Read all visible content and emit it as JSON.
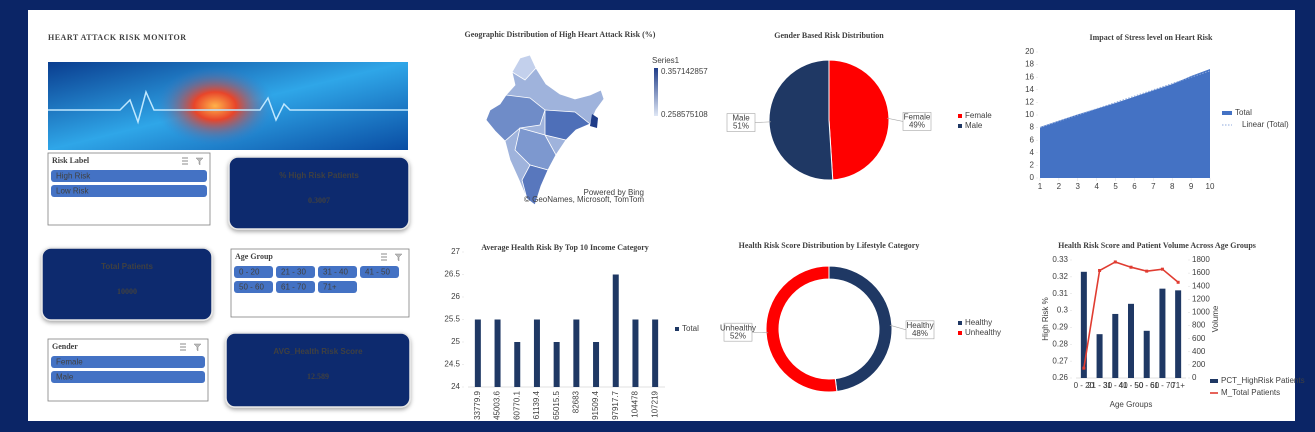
{
  "header": {
    "title": "HEART ATTACK RISK MONITOR"
  },
  "slicers": [
    {
      "title": "Risk Label",
      "items": [
        "High Risk",
        "Low Risk"
      ]
    },
    {
      "title": "Age Group",
      "items": [
        "0 - 20",
        "21 - 30",
        "31 - 40",
        "41 - 50",
        "50 - 60",
        "61 - 70",
        "71+"
      ]
    },
    {
      "title": "Gender",
      "items": [
        "Female",
        "Male"
      ]
    }
  ],
  "kpis": [
    {
      "label": "% High Risk Patients",
      "value": 0.3007
    },
    {
      "label": "Total Patients",
      "value": 10000
    },
    {
      "label": "AVG_Health Risk Score",
      "value": 12.589
    }
  ],
  "chart_data": [
    {
      "type": "map",
      "title": "Geographic Distribution of High Heart Attack Risk (%)",
      "legend_title": "Series1",
      "color_max": 0.357142857,
      "color_min": 0.258575108,
      "colors": [
        "#1f3c88",
        "#dfe7f5"
      ],
      "attribution": [
        "Powered by Bing",
        "© GeoNames, Microsoft, TomTom"
      ]
    },
    {
      "type": "pie",
      "title": "Gender Based Risk Distribution",
      "categories": [
        "Female",
        "Male"
      ],
      "values": [
        49,
        51
      ],
      "value_labels": [
        "49%",
        "51%"
      ],
      "colors": [
        "#ff0000",
        "#1f3864"
      ]
    },
    {
      "type": "area",
      "title": "Impact of Stress level on Heart Risk",
      "x": [
        1,
        2,
        3,
        4,
        5,
        6,
        7,
        8,
        9,
        10
      ],
      "series": [
        {
          "name": "Total",
          "kind": "area",
          "color": "#4472c4",
          "values": [
            8.1,
            9.1,
            10.1,
            11.0,
            11.9,
            12.9,
            13.9,
            14.9,
            16.2,
            17.3
          ]
        },
        {
          "name": "Linear (Total)",
          "kind": "trendline",
          "color": "#8faadc",
          "values": [
            8.0,
            9.0,
            10.0,
            11.0,
            12.0,
            13.0,
            14.0,
            15.0,
            16.0,
            17.0
          ]
        }
      ],
      "xlim": [
        1,
        10
      ],
      "xticks": [
        1,
        2,
        3,
        4,
        5,
        6,
        7,
        8,
        9,
        10
      ],
      "ylim": [
        0,
        20
      ],
      "yticks": [
        0,
        2,
        4,
        6,
        8,
        10,
        12,
        14,
        16,
        18,
        20
      ]
    },
    {
      "type": "bar",
      "title": "Average Health Risk  By Top 10 Income Category",
      "categories": [
        "33779.9",
        "45003.6",
        "60770.1",
        "61139.4",
        "65015.5",
        "82683",
        "91509.4",
        "97917.7",
        "104478",
        "107219"
      ],
      "series": [
        {
          "name": "Total",
          "color": "#1f3864",
          "values": [
            25.5,
            25.5,
            25,
            25.5,
            25,
            25.5,
            25,
            26.5,
            25.5,
            25.5
          ]
        }
      ],
      "ylim": [
        24,
        27
      ],
      "yticks": [
        24,
        24.5,
        25,
        25.5,
        26,
        26.5,
        27
      ]
    },
    {
      "type": "donut",
      "title": "Health Risk Score Distribution by Lifestyle Category",
      "categories": [
        "Healthy",
        "Unhealthy"
      ],
      "values": [
        48,
        52
      ],
      "value_labels": [
        "48%",
        "52%"
      ],
      "colors": [
        "#1f3864",
        "#ff0000"
      ]
    },
    {
      "type": "combo",
      "title": "Health Risk Score and Patient Volume Across Age Groups",
      "categories": [
        "0 - 20",
        "21 - 30",
        "31 - 40",
        "41 - 50",
        "50 - 60",
        "61 - 70",
        "71+"
      ],
      "series": [
        {
          "name": "PCT_HighRisk Patients",
          "kind": "bar",
          "color": "#1f3864",
          "values": [
            0.323,
            0.286,
            0.298,
            0.304,
            0.288,
            0.313,
            0.312
          ]
        },
        {
          "name": "M_Total Patients",
          "kind": "line",
          "axis": "y2",
          "color": "#e03c31",
          "values": [
            150,
            1640,
            1770,
            1690,
            1630,
            1660,
            1460
          ]
        }
      ],
      "ylabel": "High Risk %",
      "y2label": "Volume",
      "xlabel": "Age Groups",
      "ylim": [
        0.26,
        0.33
      ],
      "yticks": [
        0.26,
        0.27,
        0.28,
        0.29,
        0.3,
        0.31,
        0.32,
        0.33
      ],
      "y2lim": [
        0,
        1800
      ],
      "y2ticks": [
        0,
        200,
        400,
        600,
        800,
        1000,
        1200,
        1400,
        1600,
        1800
      ]
    }
  ]
}
